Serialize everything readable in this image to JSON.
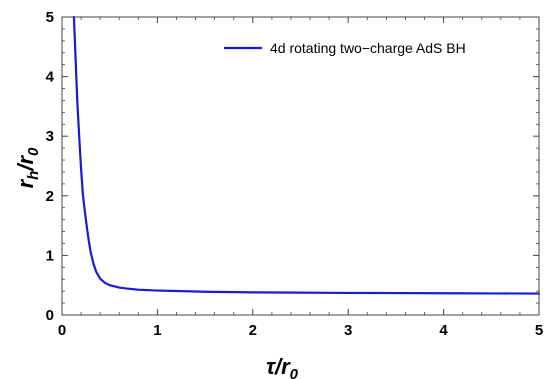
{
  "chart_data": {
    "type": "line",
    "title": "",
    "xlabel": {
      "main": "τ/r",
      "sub": "0"
    },
    "ylabel": {
      "main": "r",
      "sub1": "h",
      "mid": "/r",
      "sub2": "0"
    },
    "xlim": [
      0,
      5
    ],
    "ylim": [
      0,
      5
    ],
    "x_ticks": [
      0,
      1,
      2,
      3,
      4,
      5
    ],
    "y_ticks": [
      0,
      1,
      2,
      3,
      4,
      5
    ],
    "x_tick_labels": [
      "0",
      "1",
      "2",
      "3",
      "4",
      "5"
    ],
    "y_tick_labels": [
      "0",
      "1",
      "2",
      "3",
      "4",
      "5"
    ],
    "grid": false,
    "legend_position": "top-right",
    "series": [
      {
        "name": "4d rotating two−charge AdS BH",
        "color": "#1a1ad6",
        "x": [
          0.125,
          0.14,
          0.16,
          0.18,
          0.2,
          0.22,
          0.25,
          0.28,
          0.3,
          0.33,
          0.36,
          0.4,
          0.45,
          0.5,
          0.6,
          0.7,
          0.8,
          1.0,
          1.25,
          1.5,
          2.0,
          2.5,
          3.0,
          3.5,
          4.0,
          4.5,
          5.0
        ],
        "y": [
          5.0,
          4.4,
          3.6,
          3.0,
          2.45,
          2.0,
          1.6,
          1.25,
          1.06,
          0.86,
          0.72,
          0.61,
          0.54,
          0.5,
          0.46,
          0.44,
          0.425,
          0.41,
          0.4,
          0.39,
          0.38,
          0.375,
          0.37,
          0.368,
          0.365,
          0.362,
          0.36
        ]
      }
    ]
  }
}
